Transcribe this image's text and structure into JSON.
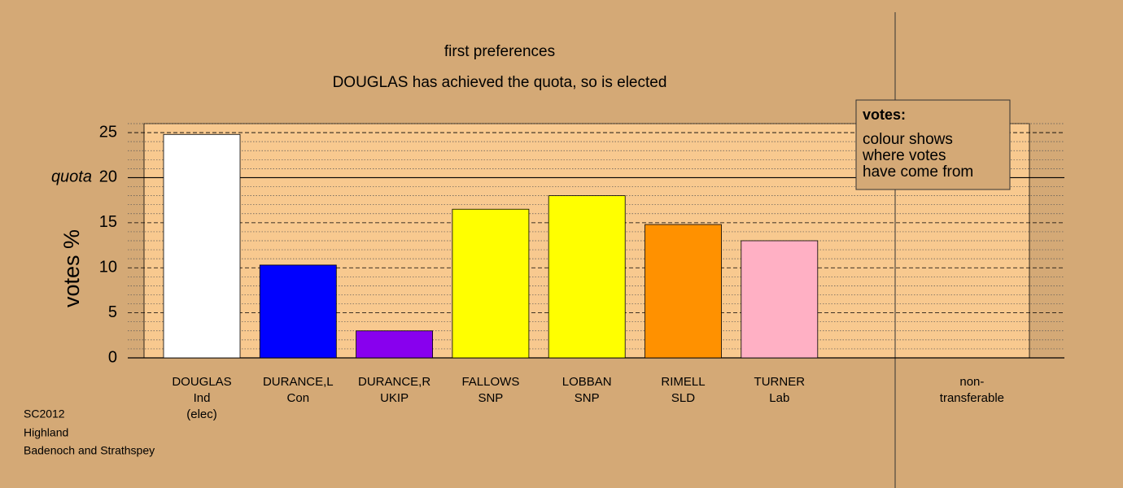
{
  "chart_data": {
    "type": "bar",
    "title": "first preferences",
    "subtitle": "DOUGLAS has achieved the quota, so is elected",
    "y_label": "votes %",
    "categories": [
      [
        "DOUGLAS",
        "Ind",
        "(elec)"
      ],
      [
        "DURANCE,L",
        "Con"
      ],
      [
        "DURANCE,R",
        "UKIP"
      ],
      [
        "FALLOWS",
        "SNP"
      ],
      [
        "LOBBAN",
        "SNP"
      ],
      [
        "RIMELL",
        "SLD"
      ],
      [
        "TURNER",
        "Lab"
      ],
      [
        "non-",
        "transferable"
      ]
    ],
    "values": [
      24.8,
      10.3,
      3.0,
      16.5,
      18.0,
      14.8,
      13.0,
      null
    ],
    "colors": [
      "#ffffff",
      "#0000ff",
      "#8800ee",
      "#ffff00",
      "#ffff00",
      "#ff9100",
      "#ffb0c4",
      null
    ],
    "ylim": [
      0,
      26
    ],
    "yticks": [
      0,
      5,
      10,
      15,
      20,
      25
    ],
    "minor_yticks": [
      1,
      2,
      3,
      4,
      6,
      7,
      8,
      9,
      11,
      12,
      13,
      14,
      16,
      17,
      18,
      19,
      21,
      22,
      23,
      24,
      26
    ],
    "quota": {
      "value": 20,
      "label": "quota"
    },
    "legend": {
      "title": "votes:",
      "lines": [
        "colour shows",
        "where votes",
        "have come from"
      ]
    },
    "footer": [
      "SC2012",
      "Highland",
      "Badenoch and Strathspey"
    ]
  }
}
